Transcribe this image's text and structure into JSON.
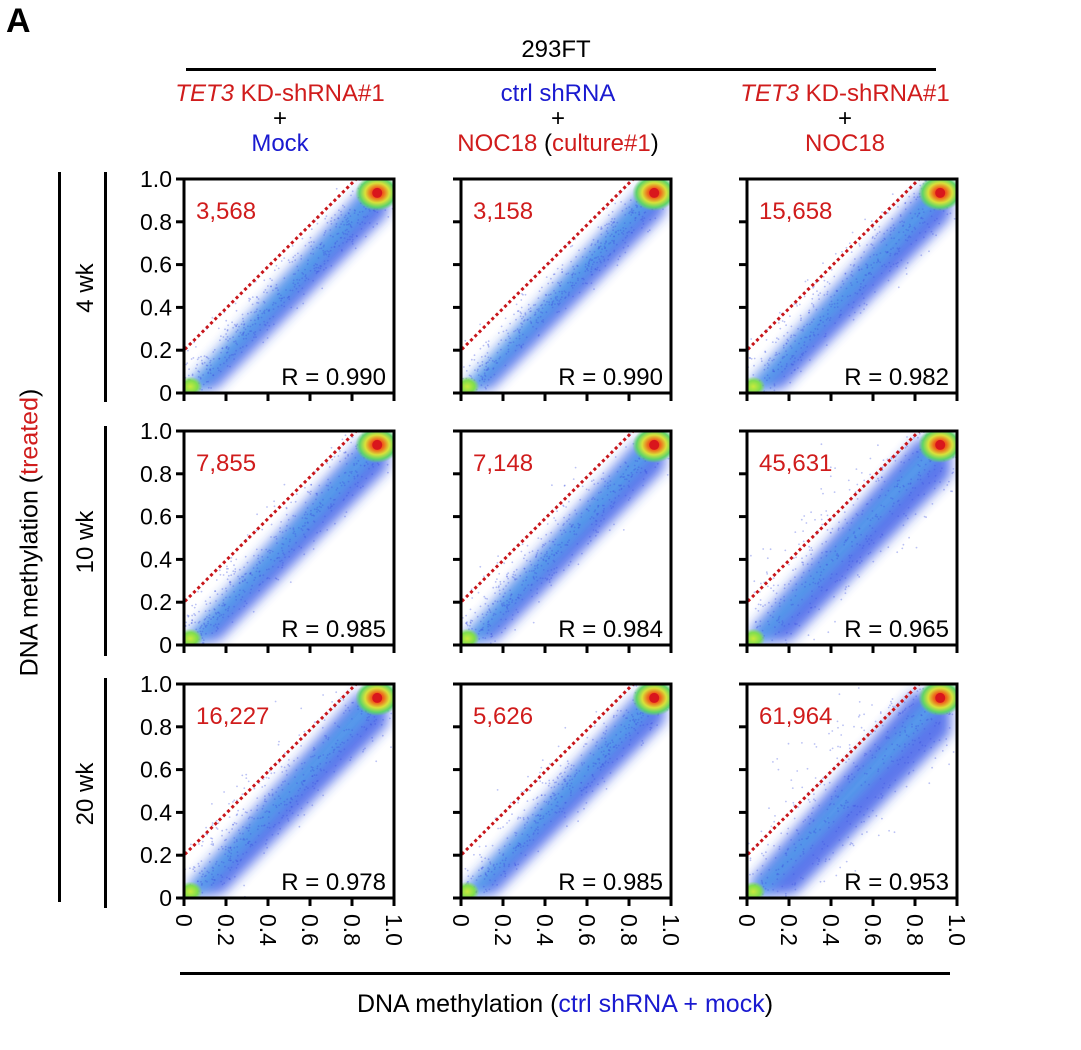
{
  "panel_label": "A",
  "top_title": "293FT",
  "columns": [
    {
      "line1_italic": "TET3",
      "line1_rest": " KD-shRNA#1",
      "line1_color": "red",
      "plus": "+",
      "line3": "Mock",
      "line3_color": "blue",
      "line3_extra": "",
      "line3_extra_b": ""
    },
    {
      "line1_italic": "",
      "line1_rest": "ctrl shRNA",
      "line1_color": "blue",
      "plus": "+",
      "line3": "NOC18",
      "line3_color": "red",
      "line3_extra": " (",
      "line3_extra_b": "culture#1",
      "line3_extra_c": ")"
    },
    {
      "line1_italic": "TET3",
      "line1_rest": " KD-shRNA#1",
      "line1_color": "red",
      "plus": "+",
      "line3": "NOC18",
      "line3_color": "red",
      "line3_extra": "",
      "line3_extra_b": ""
    }
  ],
  "rows": [
    "4 wk",
    "10 wk",
    "20 wk"
  ],
  "y_axis_title": {
    "a": "DNA methylation (",
    "b": "treated",
    "c": ")"
  },
  "x_axis_title": {
    "a": "DNA methylation (",
    "b": "ctrl shRNA + mock",
    "c": ")"
  },
  "colors": {
    "red": "#d01c1c",
    "blue": "#1a1ad0"
  },
  "chart_data": {
    "type": "scatter",
    "xlim": [
      0,
      1.0
    ],
    "ylim": [
      0,
      1.0
    ],
    "ticks": [
      "0",
      "0.2",
      "0.4",
      "0.6",
      "0.8",
      "1.0"
    ],
    "tick_values": [
      0,
      0.2,
      0.4,
      0.6,
      0.8,
      1.0
    ],
    "panels": [
      {
        "row": 0,
        "col": 0,
        "count": "3,568",
        "r": "R = 0.990",
        "spread": 0.045
      },
      {
        "row": 0,
        "col": 1,
        "count": "3,158",
        "r": "R = 0.990",
        "spread": 0.04
      },
      {
        "row": 0,
        "col": 2,
        "count": "15,658",
        "r": "R = 0.982",
        "spread": 0.06
      },
      {
        "row": 1,
        "col": 0,
        "count": "7,855",
        "r": "R = 0.985",
        "spread": 0.055
      },
      {
        "row": 1,
        "col": 1,
        "count": "7,148",
        "r": "R = 0.984",
        "spread": 0.055
      },
      {
        "row": 1,
        "col": 2,
        "count": "45,631",
        "r": "R = 0.965",
        "spread": 0.09
      },
      {
        "row": 2,
        "col": 0,
        "count": "16,227",
        "r": "R = 0.978",
        "spread": 0.07
      },
      {
        "row": 2,
        "col": 1,
        "count": "5,626",
        "r": "R = 0.985",
        "spread": 0.055
      },
      {
        "row": 2,
        "col": 2,
        "count": "61,964",
        "r": "R = 0.953",
        "spread": 0.11
      }
    ],
    "threshold_region": {
      "x": [
        0,
        0,
        0.82
      ],
      "y": [
        0.2,
        1.0,
        1.0
      ]
    }
  }
}
